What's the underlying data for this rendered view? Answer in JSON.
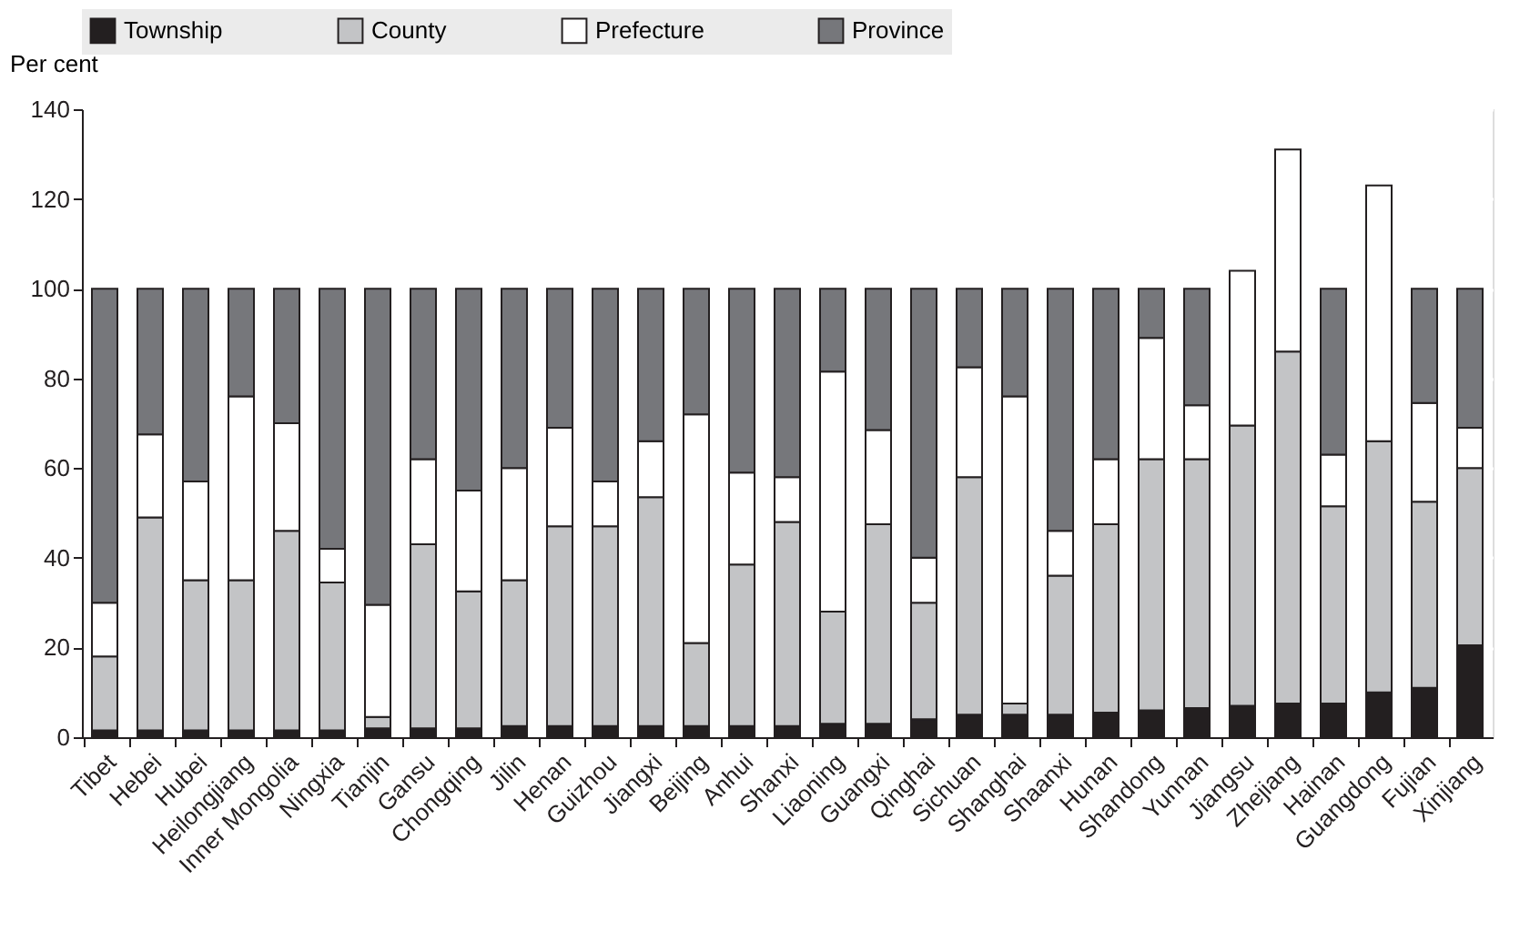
{
  "chart_data": {
    "type": "bar",
    "stacked": true,
    "ylabel": "Per cent",
    "categories": [
      "Tibet",
      "Hebei",
      "Hubei",
      "Heilongjiang",
      "Inner Mongolia",
      "Ningxia",
      "Tianjin",
      "Gansu",
      "Chongqing",
      "Jilin",
      "Henan",
      "Guizhou",
      "Jiangxi",
      "Beijing",
      "Anhui",
      "Shanxi",
      "Liaoning",
      "Guangxi",
      "Qinghai",
      "Sichuan",
      "Shanghai",
      "Shaanxi",
      "Hunan",
      "Shandong",
      "Yunnan",
      "Jiangsu",
      "Zhejiang",
      "Hainan",
      "Guangdong",
      "Fujian",
      "Xinjiang"
    ],
    "series": [
      {
        "name": "Township",
        "color": "#231f20",
        "values": [
          1.5,
          1.5,
          1.5,
          1.5,
          1.5,
          1.5,
          2,
          2,
          2,
          2.5,
          2.5,
          2.5,
          2.5,
          2.5,
          2.5,
          2.5,
          3,
          3,
          4,
          5,
          5,
          5,
          5.5,
          6,
          6.5,
          7,
          7.5,
          7.5,
          10,
          11,
          20.5
        ]
      },
      {
        "name": "County",
        "color": "#c3c4c6",
        "values": [
          16.5,
          47.5,
          33.5,
          33.5,
          44.5,
          33,
          2.5,
          41,
          30.5,
          32.5,
          44.5,
          44.5,
          51,
          18.5,
          36,
          45.5,
          25,
          44.5,
          26,
          53,
          2.5,
          31,
          42,
          56,
          55.5,
          62.5,
          78.5,
          44,
          56,
          41.5,
          39.5
        ]
      },
      {
        "name": "Prefecture",
        "color": "#ffffff",
        "values": [
          12,
          18.5,
          22,
          41,
          24,
          7.5,
          25,
          19,
          22.5,
          25,
          22,
          10,
          12.5,
          51,
          20.5,
          10,
          53.5,
          21,
          10,
          24.5,
          68.5,
          10,
          14.5,
          27,
          12,
          34.5,
          45,
          11.5,
          57,
          22,
          9
        ]
      },
      {
        "name": "Province",
        "color": "#76777b",
        "values": [
          70,
          32.5,
          43,
          24,
          30,
          58,
          70.5,
          38,
          45,
          40,
          31,
          43,
          34,
          28,
          41,
          42,
          18.5,
          31.5,
          60,
          17.5,
          24,
          54,
          38,
          11,
          26,
          null,
          null,
          37,
          null,
          25.5,
          31
        ]
      }
    ],
    "ylim": [
      0,
      140
    ],
    "yticks": [
      0,
      20,
      40,
      60,
      80,
      100,
      120,
      140
    ],
    "grid": true,
    "legend": "top"
  }
}
